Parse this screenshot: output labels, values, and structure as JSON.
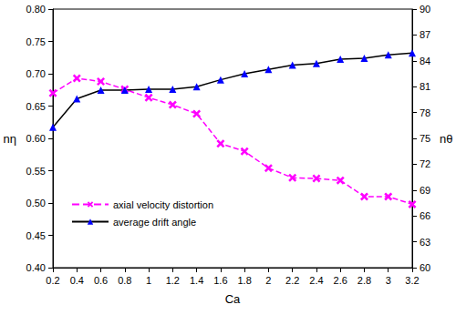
{
  "chart_data": {
    "type": "line",
    "x_label": "Ca",
    "y_label": "nη",
    "y2_label": "nθ",
    "x": [
      0.2,
      0.4,
      0.6,
      0.8,
      1.0,
      1.2,
      1.4,
      1.6,
      1.8,
      2.0,
      2.2,
      2.4,
      2.6,
      2.8,
      3.0,
      3.2
    ],
    "series": [
      {
        "name": "axial velocity distortion",
        "color": "#ff00ff",
        "marker": "x",
        "line_style": "dashed",
        "values": [
          0.67,
          0.693,
          0.688,
          0.676,
          0.663,
          0.652,
          0.638,
          0.592,
          0.58,
          0.554,
          0.539,
          0.538,
          0.535,
          0.51,
          0.51,
          0.498
        ]
      },
      {
        "name": "average drift angle",
        "color": "#000000",
        "marker": "triangle",
        "line_style": "solid",
        "axis": "y2",
        "values": [
          76.3,
          79.6,
          80.6,
          80.6,
          80.7,
          80.7,
          81.0,
          81.8,
          82.5,
          83.0,
          83.5,
          83.7,
          84.2,
          84.3,
          84.7,
          84.9
        ]
      }
    ],
    "xlim": [
      0.2,
      3.2
    ],
    "xticks": [
      0.2,
      0.4,
      0.6,
      0.8,
      1,
      1.2,
      1.4,
      1.6,
      1.8,
      2,
      2.2,
      2.4,
      2.6,
      2.8,
      3,
      3.2
    ],
    "ylim": [
      0.4,
      0.8
    ],
    "yticks": [
      {
        "value": 0.4,
        "label": "0.40"
      },
      {
        "value": 0.45,
        "label": "0.45"
      },
      {
        "value": 0.5,
        "label": "0.50"
      },
      {
        "value": 0.55,
        "label": "0.55"
      },
      {
        "value": 0.6,
        "label": "0.60"
      },
      {
        "value": 0.65,
        "label": "0.65"
      },
      {
        "value": 0.7,
        "label": "0.70"
      },
      {
        "value": 0.75,
        "label": "0.75"
      },
      {
        "value": 0.8,
        "label": "0.80"
      }
    ],
    "y2lim": [
      60,
      90
    ],
    "y2ticks": [
      60,
      63,
      66,
      69,
      72,
      75,
      78,
      81,
      84,
      87,
      90
    ],
    "grid": false,
    "legend": "lower left"
  }
}
